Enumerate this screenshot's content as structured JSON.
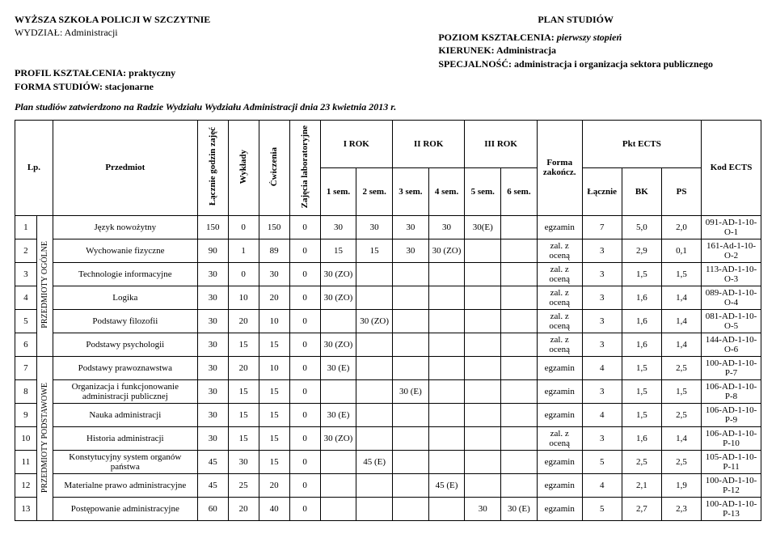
{
  "header": {
    "school": "WYŻSZA SZKOŁA POLICJI W SZCZYTNIE",
    "department": "WYDZIAŁ:  Administracji",
    "profile_label": "PROFIL KSZTAŁCENIA: ",
    "profile_value": "praktyczny",
    "form_label": "FORMA STUDIÓW: ",
    "form_value": "stacjonarne",
    "title": "PLAN STUDIÓW",
    "level_label": "POZIOM KSZTAŁCENIA: ",
    "level_value": "pierwszy stopień",
    "direction_label": "KIERUNEK: ",
    "direction_value": "Administracja",
    "spec_label": "SPECJALNOŚĆ: ",
    "spec_value": "administracja i organizacja sektora publicznego",
    "approval": "Plan studiów zatwierdzono na Radzie Wydziału Wydziału Administracji dnia 23 kwietnia 2013 r."
  },
  "thead": {
    "lp": "Lp.",
    "subject": "Przedmiot",
    "total_hours": "Łącznie godzin zajęć",
    "lectures": "Wykłady",
    "exercises": "Ćwiczenia",
    "labs": "Zajęcia laboratoryjne",
    "rok1": "I ROK",
    "rok2": "II ROK",
    "rok3": "III ROK",
    "form": "Forma zakończ.",
    "pkt": "Pkt ECTS",
    "code": "Kod ECTS",
    "sem1": "1 sem.",
    "sem2": "2 sem.",
    "sem3": "3 sem.",
    "sem4": "4 sem.",
    "sem5": "5 sem.",
    "sem6": "6 sem.",
    "lacznie": "Łącznie",
    "bk": "BK",
    "ps": "PS"
  },
  "groups": {
    "g1": "PRZEDMIOTY OGÓLNE",
    "g2": "PRZEDMIOTY PODSTAWOWE"
  },
  "rows": [
    {
      "lp": "1",
      "subject": "Język nowożytny",
      "tot": "150",
      "wyk": "0",
      "cw": "150",
      "lab": "0",
      "s1": "30",
      "s2": "30",
      "s3": "30",
      "s4": "30",
      "s5": "30(E)",
      "s6": "",
      "form": "egzamin",
      "l": "7",
      "bk": "5,0",
      "ps": "2,0",
      "code": "091-AD-1-10-O-1"
    },
    {
      "lp": "2",
      "subject": "Wychowanie fizyczne",
      "tot": "90",
      "wyk": "1",
      "cw": "89",
      "lab": "0",
      "s1": "15",
      "s2": "15",
      "s3": "30",
      "s4": "30 (ZO)",
      "s5": "",
      "s6": "",
      "form": "zal. z oceną",
      "l": "3",
      "bk": "2,9",
      "ps": "0,1",
      "code": "161-Ad-1-10-O-2"
    },
    {
      "lp": "3",
      "subject": "Technologie informacyjne",
      "tot": "30",
      "wyk": "0",
      "cw": "30",
      "lab": "0",
      "s1": "30 (ZO)",
      "s2": "",
      "s3": "",
      "s4": "",
      "s5": "",
      "s6": "",
      "form": "zal. z oceną",
      "l": "3",
      "bk": "1,5",
      "ps": "1,5",
      "code": "113-AD-1-10-O-3"
    },
    {
      "lp": "4",
      "subject": "Logika",
      "tot": "30",
      "wyk": "10",
      "cw": "20",
      "lab": "0",
      "s1": "30 (ZO)",
      "s2": "",
      "s3": "",
      "s4": "",
      "s5": "",
      "s6": "",
      "form": "zal. z oceną",
      "l": "3",
      "bk": "1,6",
      "ps": "1,4",
      "code": "089-AD-1-10-O-4"
    },
    {
      "lp": "5",
      "subject": "Podstawy filozofii",
      "tot": "30",
      "wyk": "20",
      "cw": "10",
      "lab": "0",
      "s1": "",
      "s2": "30 (ZO)",
      "s3": "",
      "s4": "",
      "s5": "",
      "s6": "",
      "form": "zal. z oceną",
      "l": "3",
      "bk": "1,6",
      "ps": "1,4",
      "code": "081-AD-1-10-O-5"
    },
    {
      "lp": "6",
      "subject": "Podstawy psychologii",
      "tot": "30",
      "wyk": "15",
      "cw": "15",
      "lab": "0",
      "s1": "30 (ZO)",
      "s2": "",
      "s3": "",
      "s4": "",
      "s5": "",
      "s6": "",
      "form": "zal. z oceną",
      "l": "3",
      "bk": "1,6",
      "ps": "1,4",
      "code": "144-AD-1-10-O-6"
    },
    {
      "lp": "7",
      "subject": "Podstawy prawoznawstwa",
      "tot": "30",
      "wyk": "20",
      "cw": "10",
      "lab": "0",
      "s1": "30 (E)",
      "s2": "",
      "s3": "",
      "s4": "",
      "s5": "",
      "s6": "",
      "form": "egzamin",
      "l": "4",
      "bk": "1,5",
      "ps": "2,5",
      "code": "100-AD-1-10-P-7"
    },
    {
      "lp": "8",
      "subject": "Organizacja i funkcjonowanie administracji publicznej",
      "tot": "30",
      "wyk": "15",
      "cw": "15",
      "lab": "0",
      "s1": "",
      "s2": "",
      "s3": "30 (E)",
      "s4": "",
      "s5": "",
      "s6": "",
      "form": "egzamin",
      "l": "3",
      "bk": "1,5",
      "ps": "1,5",
      "code": "106-AD-1-10-P-8"
    },
    {
      "lp": "9",
      "subject": "Nauka  administracji",
      "tot": "30",
      "wyk": "15",
      "cw": "15",
      "lab": "0",
      "s1": "30 (E)",
      "s2": "",
      "s3": "",
      "s4": "",
      "s5": "",
      "s6": "",
      "form": "egzamin",
      "l": "4",
      "bk": "1,5",
      "ps": "2,5",
      "code": "106-AD-1-10-P-9"
    },
    {
      "lp": "10",
      "subject": "Historia administracji",
      "tot": "30",
      "wyk": "15",
      "cw": "15",
      "lab": "0",
      "s1": "30 (ZO)",
      "s2": "",
      "s3": "",
      "s4": "",
      "s5": "",
      "s6": "",
      "form": "zal. z oceną",
      "l": "3",
      "bk": "1,6",
      "ps": "1,4",
      "code": "106-AD-1-10-P-10"
    },
    {
      "lp": "11",
      "subject": "Konstytucyjny system organów państwa",
      "tot": "45",
      "wyk": "30",
      "cw": "15",
      "lab": "0",
      "s1": "",
      "s2": "45 (E)",
      "s3": "",
      "s4": "",
      "s5": "",
      "s6": "",
      "form": "egzamin",
      "l": "5",
      "bk": "2,5",
      "ps": "2,5",
      "code": "105-AD-1-10-P-11"
    },
    {
      "lp": "12",
      "subject": "Materialne prawo administracyjne",
      "tot": "45",
      "wyk": "25",
      "cw": "20",
      "lab": "0",
      "s1": "",
      "s2": "",
      "s3": "",
      "s4": "45 (E)",
      "s5": "",
      "s6": "",
      "form": "egzamin",
      "l": "4",
      "bk": "2,1",
      "ps": "1,9",
      "code": "100-AD-1-10-P-12"
    },
    {
      "lp": "13",
      "subject": "Postępowanie administracyjne",
      "tot": "60",
      "wyk": "20",
      "cw": "40",
      "lab": "0",
      "s1": "",
      "s2": "",
      "s3": "",
      "s4": "",
      "s5": "30",
      "s6": "30 (E)",
      "form": "egzamin",
      "l": "5",
      "bk": "2,7",
      "ps": "2,3",
      "code": "100-AD-1-10-P-13"
    }
  ]
}
